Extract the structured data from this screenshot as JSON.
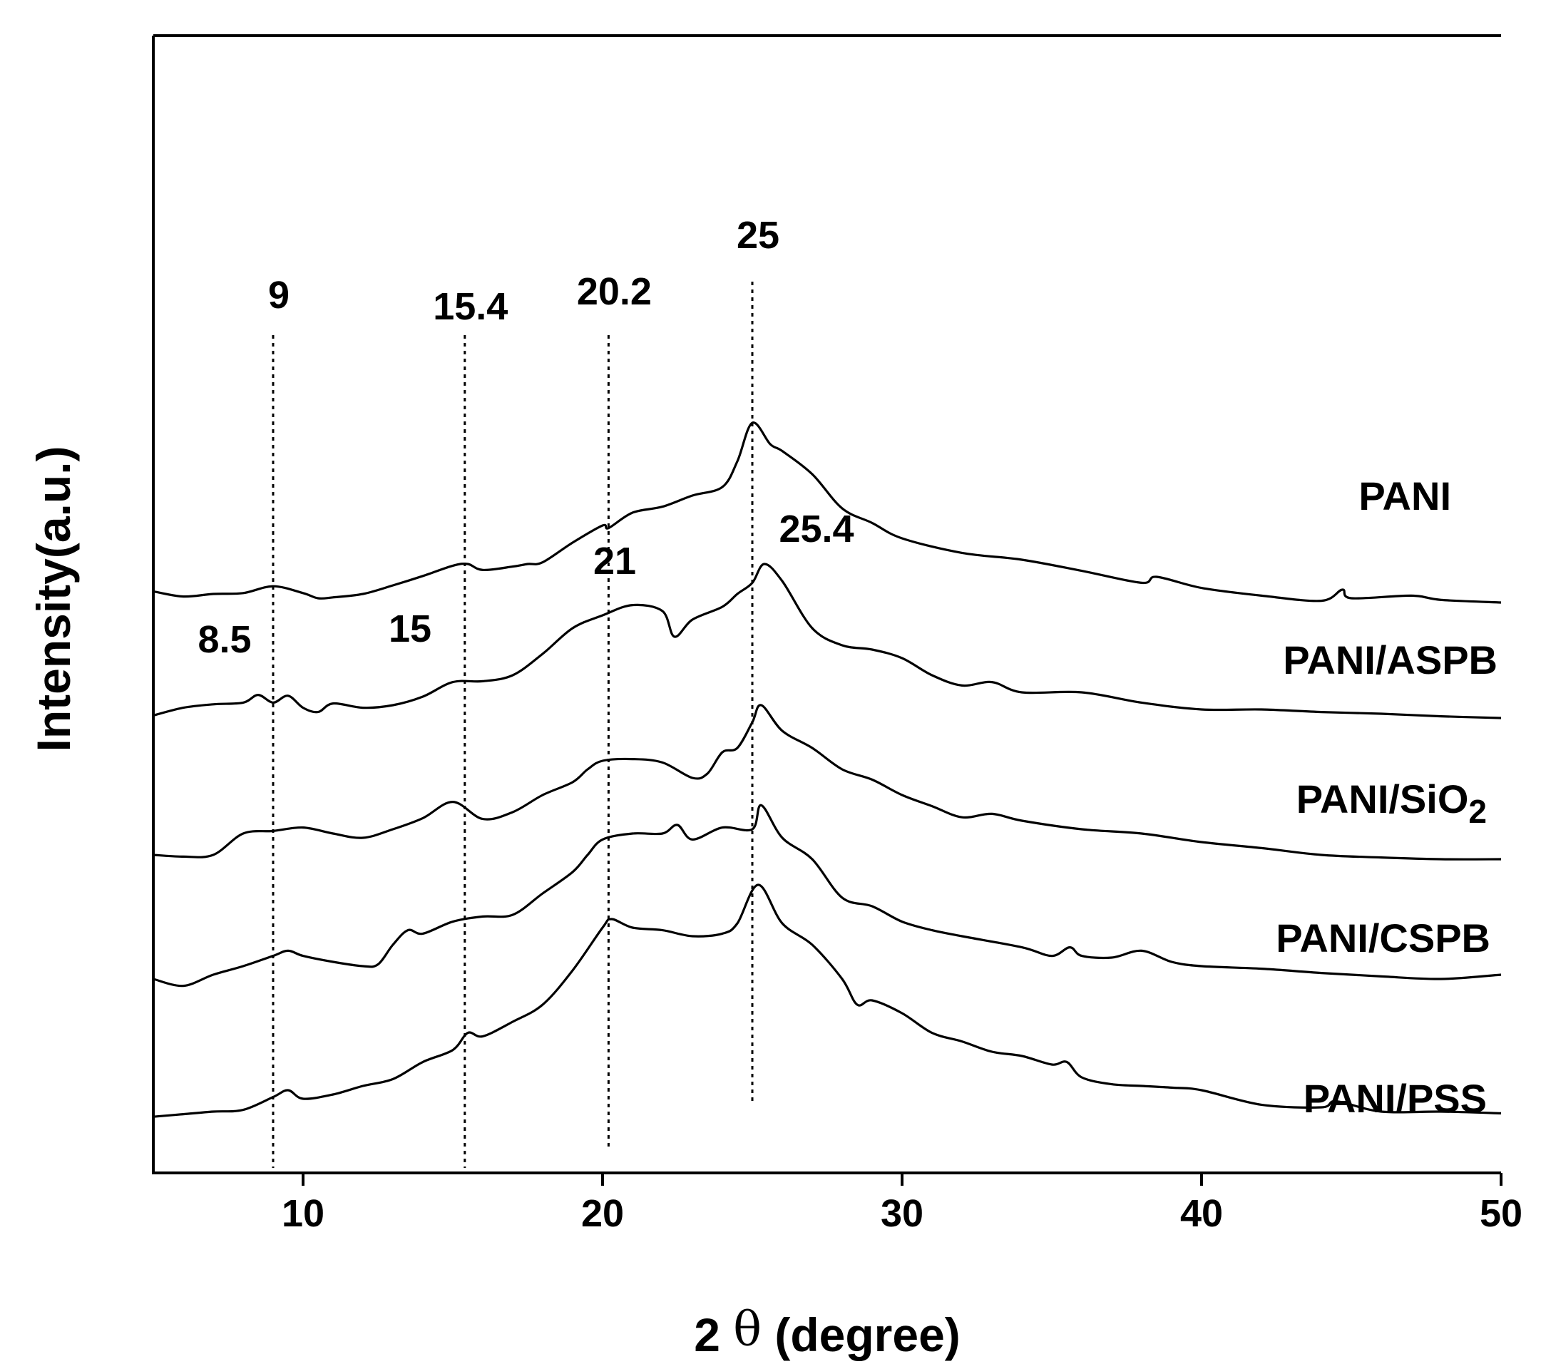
{
  "chart_data": {
    "type": "line",
    "xlabel_parts": [
      "2 ",
      "θ",
      " (degree)"
    ],
    "ylabel": "Intensity(a.u.)",
    "xlim": [
      5,
      50
    ],
    "xticks": [
      10,
      20,
      30,
      40,
      50
    ],
    "xtick_labels": [
      "10",
      "20",
      "30",
      "40",
      "50"
    ],
    "yticks": [],
    "grid": false,
    "legend": "none",
    "color": "#000000",
    "series": [
      {
        "name": "PANI",
        "label_parts": [
          "PANI"
        ],
        "offset": 4,
        "x": [
          5,
          6,
          7,
          8,
          9,
          10,
          10.5,
          11,
          12,
          13,
          14,
          15,
          15.5,
          16,
          17,
          17.5,
          18,
          19,
          20,
          20.2,
          21,
          22,
          23,
          24,
          24.5,
          25,
          25.6,
          26,
          27,
          28,
          29,
          30,
          32,
          34,
          36,
          38,
          38.5,
          40,
          42,
          44,
          44.7,
          45,
          47,
          48,
          50
        ],
        "y": [
          0.38,
          0.32,
          0.35,
          0.36,
          0.44,
          0.36,
          0.3,
          0.31,
          0.35,
          0.45,
          0.56,
          0.68,
          0.7,
          0.63,
          0.67,
          0.7,
          0.72,
          0.95,
          1.15,
          1.12,
          1.3,
          1.37,
          1.5,
          1.6,
          1.9,
          2.35,
          2.1,
          2.02,
          1.75,
          1.35,
          1.18,
          1.0,
          0.83,
          0.75,
          0.62,
          0.48,
          0.55,
          0.42,
          0.33,
          0.27,
          0.4,
          0.3,
          0.33,
          0.28,
          0.25
        ]
      },
      {
        "name": "PANI/ASPB",
        "label_parts": [
          "PANI/ASPB"
        ],
        "offset": 3,
        "x": [
          5,
          6,
          7,
          8,
          8.5,
          9,
          9.5,
          10,
          10.5,
          11,
          12,
          13,
          14,
          15,
          16,
          17,
          18,
          19,
          20,
          21,
          22,
          22.4,
          23,
          24,
          24.5,
          25,
          25.4,
          26,
          27,
          28,
          29,
          30,
          31,
          32,
          33,
          34,
          36,
          38,
          40,
          42,
          44,
          46,
          48,
          50
        ],
        "y": [
          0.43,
          0.52,
          0.56,
          0.58,
          0.67,
          0.58,
          0.66,
          0.52,
          0.47,
          0.57,
          0.52,
          0.55,
          0.65,
          0.82,
          0.83,
          0.9,
          1.15,
          1.45,
          1.6,
          1.72,
          1.65,
          1.35,
          1.55,
          1.7,
          1.85,
          1.98,
          2.2,
          2.0,
          1.45,
          1.25,
          1.2,
          1.1,
          0.9,
          0.78,
          0.82,
          0.7,
          0.7,
          0.58,
          0.5,
          0.5,
          0.47,
          0.45,
          0.42,
          0.4
        ]
      },
      {
        "name": "PANI/SiO2",
        "label_parts": [
          "PANI/SiO",
          "2"
        ],
        "offset": 2,
        "x": [
          5,
          6,
          7,
          8,
          9,
          10,
          11,
          12,
          13,
          14,
          15,
          16,
          17,
          18,
          19,
          19.5,
          20,
          21,
          22,
          23,
          23.5,
          24,
          24.5,
          25,
          25.3,
          26,
          27,
          28,
          29,
          30,
          31,
          32,
          33,
          34,
          36,
          38,
          40,
          42,
          44,
          46,
          48,
          50
        ],
        "y": [
          0.3,
          0.28,
          0.3,
          0.55,
          0.58,
          0.62,
          0.55,
          0.5,
          0.6,
          0.73,
          0.92,
          0.72,
          0.8,
          1.0,
          1.15,
          1.3,
          1.4,
          1.42,
          1.38,
          1.2,
          1.25,
          1.5,
          1.55,
          1.85,
          2.05,
          1.75,
          1.55,
          1.3,
          1.18,
          1.0,
          0.87,
          0.74,
          0.78,
          0.7,
          0.6,
          0.55,
          0.45,
          0.38,
          0.3,
          0.27,
          0.25,
          0.25
        ]
      },
      {
        "name": "PANI/CSPB",
        "label_parts": [
          "PANI/CSPB"
        ],
        "offset": 1,
        "x": [
          5,
          6,
          7,
          8,
          9,
          9.5,
          10,
          11,
          12,
          12.5,
          13,
          13.5,
          14,
          15,
          16,
          17,
          18,
          19,
          19.5,
          20,
          21,
          22,
          22.5,
          23,
          24,
          25,
          25.3,
          26,
          27,
          28,
          29,
          30,
          31,
          32,
          34,
          35,
          35.6,
          36,
          37,
          38,
          39,
          40,
          42,
          44,
          46,
          48,
          50
        ],
        "y": [
          0.35,
          0.27,
          0.4,
          0.5,
          0.62,
          0.68,
          0.62,
          0.55,
          0.5,
          0.52,
          0.75,
          0.92,
          0.88,
          1.02,
          1.08,
          1.1,
          1.35,
          1.6,
          1.8,
          1.98,
          2.05,
          2.05,
          2.15,
          1.98,
          2.12,
          2.1,
          2.38,
          2.0,
          1.75,
          1.3,
          1.2,
          1.02,
          0.92,
          0.85,
          0.72,
          0.62,
          0.72,
          0.62,
          0.6,
          0.68,
          0.55,
          0.5,
          0.47,
          0.42,
          0.38,
          0.35,
          0.4
        ]
      },
      {
        "name": "PANI/PSS",
        "label_parts": [
          "PANI/PSS"
        ],
        "offset": 0,
        "x": [
          5,
          6,
          7,
          8,
          9,
          9.5,
          10,
          11,
          12,
          13,
          14,
          15,
          15.5,
          16,
          17,
          18,
          19,
          20,
          20.3,
          21,
          22,
          23,
          24,
          24.5,
          25.2,
          26,
          27,
          28,
          28.5,
          29,
          30,
          31,
          32,
          33,
          34,
          35,
          35.5,
          36,
          37,
          38,
          39,
          40,
          42,
          44,
          44.5,
          46,
          48,
          50
        ],
        "y": [
          0.24,
          0.27,
          0.3,
          0.32,
          0.47,
          0.55,
          0.45,
          0.5,
          0.6,
          0.68,
          0.88,
          1.02,
          1.22,
          1.18,
          1.35,
          1.55,
          1.95,
          2.45,
          2.55,
          2.45,
          2.42,
          2.35,
          2.38,
          2.5,
          2.95,
          2.5,
          2.25,
          1.85,
          1.55,
          1.6,
          1.45,
          1.22,
          1.12,
          1.0,
          0.95,
          0.85,
          0.88,
          0.7,
          0.62,
          0.6,
          0.58,
          0.55,
          0.38,
          0.35,
          0.42,
          0.3,
          0.3,
          0.28
        ]
      }
    ],
    "reference_lines": [
      {
        "x": 9,
        "label": "9"
      },
      {
        "x": 15.4,
        "label": "15.4"
      },
      {
        "x": 20.2,
        "label": "20.2"
      },
      {
        "x": 25,
        "label": "25"
      }
    ],
    "peak_annotations": [
      {
        "x": 8.5,
        "series": "PANI/ASPB",
        "label": "8.5"
      },
      {
        "x": 15,
        "series": "PANI/ASPB",
        "label": "15"
      },
      {
        "x": 21,
        "series": "PANI/ASPB",
        "label": "21"
      },
      {
        "x": 25.4,
        "series": "PANI/ASPB",
        "label": "25.4"
      }
    ]
  }
}
